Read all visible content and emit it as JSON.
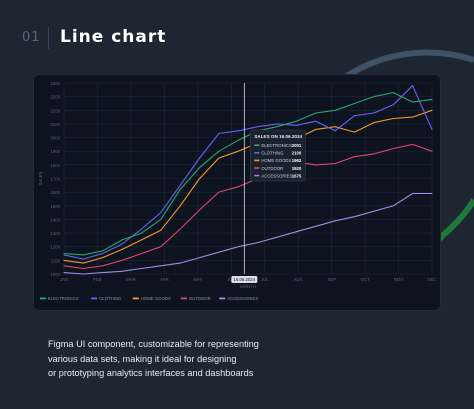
{
  "header": {
    "number": "01",
    "title": "Line chart"
  },
  "description": [
    "Figma UI component, customizable for representing",
    "various data sets, making it ideal for designing",
    "or prototyping analytics interfaces and dashboards"
  ],
  "colors": {
    "background": "#1e2632",
    "card": "#0e1320",
    "ring_top": "#3f5368",
    "ring_bottom": "#1f7a3a"
  },
  "chart_data": {
    "type": "line",
    "ylabel": "SALES",
    "xlabel": "MONTH",
    "ylim": [
      1000,
      2400
    ],
    "yticks": [
      1000,
      1100,
      1200,
      1300,
      1400,
      1500,
      1600,
      1700,
      1800,
      1900,
      2000,
      2100,
      2200,
      2300,
      2400
    ],
    "x_labels": [
      "JAN",
      "FEB",
      "MAR",
      "APR",
      "MAY",
      "JUN",
      "JUL",
      "AUG",
      "SEP",
      "OCT",
      "NOV",
      "DEC"
    ],
    "grid": true,
    "legend_placement": "bottom-left",
    "series": [
      {
        "name": "ELECTRONICS",
        "color": "#2ba76d",
        "values": [
          1150,
          1140,
          1170,
          1250,
          1300,
          1400,
          1620,
          1780,
          1900,
          1980,
          2050,
          2080,
          2120,
          2180,
          2200,
          2250,
          2300,
          2330,
          2260,
          2280
        ]
      },
      {
        "name": "CLOTHING",
        "color": "#6a63f3",
        "values": [
          1140,
          1110,
          1150,
          1220,
          1330,
          1450,
          1650,
          1850,
          2030,
          2050,
          2080,
          2100,
          2090,
          2120,
          2050,
          2160,
          2180,
          2240,
          2380,
          2060
        ]
      },
      {
        "name": "HOME GOODS",
        "color": "#f49a2e",
        "values": [
          1100,
          1080,
          1120,
          1180,
          1250,
          1320,
          1500,
          1700,
          1850,
          1900,
          1960,
          1980,
          1990,
          2060,
          2080,
          2040,
          2110,
          2140,
          2150,
          2200
        ]
      },
      {
        "name": "OUTDOOR",
        "color": "#e2456f",
        "values": [
          1060,
          1040,
          1060,
          1100,
          1150,
          1200,
          1330,
          1470,
          1600,
          1640,
          1700,
          1760,
          1820,
          1800,
          1810,
          1860,
          1880,
          1920,
          1950,
          1900
        ]
      },
      {
        "name": "ACCESSORIES",
        "color": "#a48be0",
        "values": [
          1010,
          1000,
          1010,
          1020,
          1040,
          1060,
          1080,
          1120,
          1160,
          1200,
          1230,
          1270,
          1310,
          1350,
          1390,
          1420,
          1460,
          1500,
          1590,
          1590
        ]
      }
    ],
    "tooltip": {
      "title": "SALES ON 16.06.2024",
      "date_label": "16.06.2024",
      "rows": [
        {
          "name": "ELECTRONICS",
          "value": "2001",
          "color": "#2ba76d"
        },
        {
          "name": "CLOTHING",
          "value": "2100",
          "color": "#6a63f3"
        },
        {
          "name": "HOME GOODS",
          "value": "1962",
          "color": "#f49a2e"
        },
        {
          "name": "OUTDOOR",
          "value": "1920",
          "color": "#e2456f"
        },
        {
          "name": "ACCESSORIES",
          "value": "1675",
          "color": "#a48be0"
        }
      ]
    }
  }
}
